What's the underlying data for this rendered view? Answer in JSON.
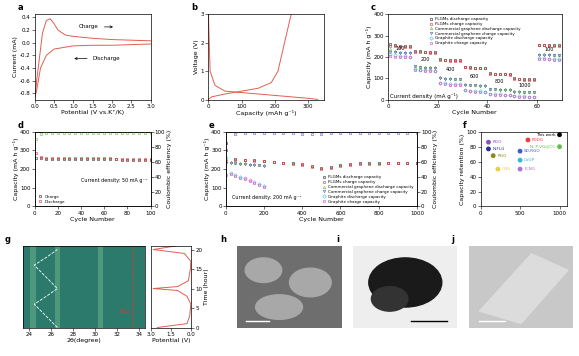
{
  "chart_data": [
    {
      "type": "line",
      "panel": "a",
      "xlabel": "Potential (V vs.K⁺/K)",
      "ylabel": "Current (mA)",
      "xlim": [
        0.0,
        3.0
      ],
      "xticks": [
        0.0,
        0.5,
        1.0,
        1.5,
        2.0,
        2.5,
        3.0
      ],
      "ylim": [
        -0.9,
        0.45
      ],
      "yticks": [
        -0.8,
        -0.6,
        -0.4,
        -0.2,
        0.0,
        0.2,
        0.4
      ],
      "annotations": [
        "Charge",
        "Discharge"
      ],
      "line_style": "solid",
      "series": [
        {
          "color": "#e35d4f",
          "x": [
            0.01,
            0.05,
            0.1,
            0.2,
            0.3,
            0.4,
            0.5,
            0.6,
            0.8,
            1.0,
            1.5,
            2.0,
            2.5,
            3.0
          ],
          "values": [
            -0.85,
            -0.6,
            -0.35,
            0.15,
            0.35,
            0.38,
            0.3,
            0.2,
            0.12,
            0.1,
            0.07,
            0.05,
            0.04,
            0.03
          ]
        },
        {
          "color": "#e35d4f",
          "x": [
            3.0,
            2.5,
            2.0,
            1.5,
            1.0,
            0.5,
            0.3,
            0.15,
            0.05,
            0.01
          ],
          "values": [
            -0.02,
            -0.03,
            -0.04,
            -0.04,
            -0.05,
            -0.1,
            -0.2,
            -0.4,
            -0.75,
            -0.85
          ]
        }
      ]
    },
    {
      "type": "line",
      "panel": "b",
      "xlabel": "Capacity (mAh g⁻¹)",
      "ylabel": "Voltage (V)",
      "xlim": [
        0,
        350
      ],
      "xticks": [
        0,
        100,
        200,
        300
      ],
      "ylim": [
        0,
        3
      ],
      "yticks": [
        0,
        1,
        2,
        3
      ],
      "line_style": "solid",
      "series": [
        {
          "color": "#e35d4f",
          "x": [
            0,
            5,
            20,
            50,
            100,
            150,
            200,
            250,
            300,
            330
          ],
          "values": [
            3.0,
            1.0,
            0.5,
            0.3,
            0.25,
            0.2,
            0.15,
            0.1,
            0.05,
            0.01
          ]
        },
        {
          "color": "#e35d4f",
          "x": [
            0,
            10,
            50,
            100,
            150,
            190,
            210,
            230,
            250
          ],
          "values": [
            0.01,
            0.1,
            0.2,
            0.3,
            0.4,
            0.6,
            1.0,
            2.0,
            3.0
          ]
        }
      ]
    },
    {
      "type": "line",
      "panel": "c",
      "xlabel": "Cycle Number",
      "ylabel": "Capacity (mA h g⁻¹)",
      "xlim": [
        0,
        70
      ],
      "xticks": [
        0,
        20,
        40,
        60
      ],
      "ylim": [
        0,
        400
      ],
      "yticks": [
        0,
        100,
        200,
        300,
        400
      ],
      "legend": "upper center",
      "line_style": "none",
      "note": "Current density (mA g⁻¹)",
      "stage_labels": [
        "100",
        "200",
        "400",
        "600",
        "800",
        "1000",
        "100"
      ],
      "x": [
        1,
        3,
        5,
        7,
        9,
        11,
        13,
        15,
        17,
        19,
        21,
        23,
        25,
        27,
        29,
        31,
        33,
        35,
        37,
        39,
        41,
        43,
        45,
        47,
        49,
        51,
        53,
        55,
        57,
        59,
        61,
        63,
        65,
        67,
        69
      ],
      "series": [
        {
          "name": "FLGMs discharge capacity",
          "color": "#222222",
          "marker": "circle",
          "values": [
            262,
            255,
            252,
            250,
            249,
            230,
            226,
            224,
            222,
            221,
            190,
            187,
            186,
            185,
            184,
            155,
            152,
            150,
            149,
            148,
            125,
            122,
            121,
            120,
            119,
            100,
            97,
            96,
            95,
            95,
            258,
            257,
            256,
            255,
            255
          ]
        },
        {
          "name": "FLGMs charge capacity",
          "color": "#e3342f",
          "marker": "circle",
          "values": [
            250,
            249,
            248,
            247,
            246,
            224,
            222,
            221,
            220,
            219,
            186,
            184,
            183,
            182,
            181,
            151,
            149,
            148,
            147,
            146,
            122,
            120,
            119,
            118,
            117,
            97,
            95,
            94,
            93,
            93,
            254,
            254,
            253,
            252,
            252
          ]
        },
        {
          "name": "Commercial graphene discharge capacity",
          "color": "#6cbf3c",
          "marker": "triangle",
          "values": [
            235,
            228,
            225,
            223,
            222,
            160,
            155,
            153,
            152,
            151,
            105,
            102,
            100,
            99,
            98,
            72,
            70,
            69,
            68,
            67,
            52,
            50,
            49,
            48,
            48,
            40,
            39,
            38,
            37,
            37,
            215,
            213,
            212,
            211,
            210
          ]
        },
        {
          "name": "Commercial graphene charge capacity",
          "color": "#5560c0",
          "marker": "triangle_down",
          "values": [
            225,
            222,
            220,
            219,
            218,
            156,
            152,
            150,
            149,
            148,
            102,
            99,
            97,
            96,
            95,
            70,
            68,
            67,
            66,
            65,
            50,
            48,
            47,
            46,
            46,
            38,
            37,
            36,
            35,
            35,
            211,
            210,
            209,
            208,
            207
          ]
        },
        {
          "name": "Graphite discharge capacity",
          "color": "#3cc0e0",
          "marker": "diamond",
          "values": [
            215,
            208,
            205,
            203,
            202,
            145,
            140,
            138,
            137,
            136,
            80,
            76,
            74,
            73,
            72,
            45,
            42,
            40,
            39,
            38,
            28,
            26,
            25,
            24,
            24,
            18,
            16,
            15,
            14,
            14,
            195,
            193,
            192,
            191,
            190
          ]
        },
        {
          "name": "Graphite charge capacity",
          "color": "#e040c0",
          "marker": "square",
          "values": [
            205,
            202,
            200,
            199,
            198,
            141,
            137,
            135,
            134,
            133,
            77,
            73,
            71,
            70,
            69,
            43,
            40,
            38,
            37,
            36,
            26,
            24,
            23,
            22,
            22,
            16,
            14,
            13,
            12,
            12,
            191,
            190,
            189,
            188,
            187
          ]
        }
      ]
    },
    {
      "type": "line",
      "panel": "d",
      "xlabel": "Cycle Number",
      "ylabel": "Capacity (mA h g⁻¹)",
      "y2label": "Coulombic efficiency (%)",
      "xlim": [
        0,
        100
      ],
      "xticks": [
        0,
        20,
        40,
        60,
        80,
        100
      ],
      "ylim": [
        0,
        400
      ],
      "yticks": [
        0,
        100,
        200,
        300,
        400
      ],
      "y2lim": [
        0,
        100
      ],
      "y2ticks": [
        0,
        20,
        40,
        60,
        80,
        100
      ],
      "legend": "lower left",
      "line_style": "none",
      "note": "Current density: 50 mA g⁻¹",
      "x": [
        1,
        5,
        10,
        15,
        20,
        25,
        30,
        35,
        40,
        45,
        50,
        55,
        60,
        65,
        70,
        75,
        80,
        85,
        90,
        95,
        100
      ],
      "series": [
        {
          "name": "Charge",
          "color": "#222222",
          "marker": "square",
          "values": [
            258,
            257,
            256,
            256,
            255,
            255,
            254,
            254,
            254,
            253,
            253,
            253,
            252,
            252,
            252,
            251,
            251,
            251,
            250,
            250,
            250
          ]
        },
        {
          "name": "Discharge",
          "color": "#e3342f",
          "marker": "circle",
          "values": [
            285,
            265,
            262,
            261,
            260,
            260,
            259,
            259,
            258,
            258,
            258,
            257,
            257,
            257,
            256,
            256,
            256,
            255,
            255,
            255,
            255
          ]
        },
        {
          "color": "#66bb44",
          "marker": "circle",
          "axis": "y2",
          "values": [
            90,
            97,
            98,
            98,
            98,
            98,
            98,
            98,
            98,
            98,
            98,
            98,
            98,
            98,
            98,
            98,
            98,
            98,
            98,
            98,
            98
          ]
        }
      ]
    },
    {
      "type": "line",
      "panel": "e",
      "xlabel": "Cycle Number",
      "ylabel": "Capacity (mA h g⁻¹)",
      "y2label": "Coulombic efficiency (%)",
      "xlim": [
        0,
        1000
      ],
      "xticks": [
        0,
        200,
        400,
        600,
        800,
        1000
      ],
      "ylim": [
        0,
        400
      ],
      "yticks": [
        0,
        100,
        200,
        300,
        400
      ],
      "y2lim": [
        0,
        100
      ],
      "y2ticks": [
        0,
        20,
        40,
        60,
        80,
        100
      ],
      "legend": "lower right",
      "line_style": "none",
      "note": "Current density: 200 mA g⁻¹",
      "series": [
        {
          "name": "FLGMs discharge capacity",
          "color": "#222222",
          "marker": "circle",
          "x": [
            1,
            50,
            100,
            150,
            200,
            250,
            300,
            350,
            400,
            450,
            500,
            550,
            600,
            650,
            700,
            750,
            800,
            850,
            900,
            950,
            1000
          ],
          "values": [
            340,
            255,
            250,
            248,
            245,
            240,
            235,
            230,
            225,
            215,
            205,
            210,
            220,
            225,
            230,
            232,
            232,
            233,
            233,
            234,
            235
          ]
        },
        {
          "name": "FLGMs charge capacity",
          "color": "#e3342f",
          "marker": "square",
          "x": [
            1,
            50,
            100,
            150,
            200,
            250,
            300,
            350,
            400,
            450,
            500,
            550,
            600,
            650,
            700,
            750,
            800,
            850,
            900,
            950,
            1000
          ],
          "values": [
            245,
            250,
            247,
            245,
            242,
            237,
            232,
            227,
            222,
            212,
            202,
            207,
            217,
            222,
            227,
            229,
            229,
            230,
            230,
            231,
            232
          ]
        },
        {
          "name": "Commercial graphene discharge capacity",
          "color": "#6cbf3c",
          "marker": "triangle",
          "x": [
            1,
            25,
            50,
            75,
            100,
            125,
            150,
            175,
            200
          ],
          "values": [
            300,
            240,
            235,
            232,
            230,
            228,
            226,
            224,
            222
          ]
        },
        {
          "name": "Commercial graphene charge capacity",
          "color": "#5560c0",
          "marker": "triangle_down",
          "x": [
            1,
            25,
            50,
            75,
            100,
            125,
            150,
            175,
            200
          ],
          "values": [
            230,
            232,
            230,
            228,
            226,
            224,
            222,
            220,
            218
          ]
        },
        {
          "name": "Graphite discharge capacity",
          "color": "#3cc0e0",
          "marker": "diamond",
          "x": [
            1,
            25,
            50,
            75,
            100,
            125,
            150,
            175,
            200
          ],
          "values": [
            260,
            180,
            170,
            160,
            150,
            140,
            130,
            120,
            110
          ]
        },
        {
          "name": "Graphite charge capacity",
          "color": "#e040c0",
          "marker": "square",
          "x": [
            1,
            25,
            50,
            75,
            100,
            125,
            150,
            175,
            200
          ],
          "values": [
            170,
            172,
            165,
            155,
            145,
            135,
            125,
            115,
            105
          ]
        },
        {
          "color": "#5b5bd6",
          "marker": "circle",
          "axis": "y2",
          "x": [
            1,
            50,
            100,
            150,
            200,
            250,
            300,
            350,
            400,
            450,
            500,
            550,
            600,
            650,
            700,
            750,
            800,
            850,
            900,
            950,
            1000
          ],
          "values": [
            75,
            97,
            98,
            98,
            98,
            98,
            98,
            98,
            97,
            97,
            97,
            98,
            98,
            98,
            98,
            98,
            98,
            98,
            98,
            98,
            98
          ]
        }
      ]
    },
    {
      "type": "scatter",
      "panel": "f",
      "ylabel": "Capacity retention (%)",
      "xlim": [
        0,
        1100
      ],
      "xticks": [
        0,
        500,
        1000
      ],
      "ylim": [
        0,
        100
      ],
      "yticks": [
        0,
        20,
        40,
        60,
        80,
        100
      ],
      "marker": "circle",
      "x": [
        100,
        100,
        160,
        600,
        500,
        500,
        1000,
        500,
        220,
        1000
      ],
      "values": [
        86,
        77,
        68,
        89,
        74,
        62,
        80,
        50,
        50,
        96
      ],
      "point_labels": [
        "RGO",
        "N-FLG",
        "RGO",
        "PDDG",
        "SD-RGO",
        "CoGP",
        "N, P-VG@CC",
        "FLNG",
        "GNS",
        "This work"
      ],
      "colors": [
        "#8a4fbf",
        "#2b2f8f",
        "#8a8a1a",
        "#e0413a",
        "#3a5bd0",
        "#35b8d8",
        "#5fbf4a",
        "#b070d0",
        "#e8d040",
        "#000000"
      ]
    },
    {
      "type": "contour",
      "panel": "g",
      "xlabel": "2θ(degree)",
      "xlim": [
        23.5,
        34.5
      ],
      "xticks": [
        24,
        26,
        28,
        30,
        32,
        34
      ],
      "ylim": [
        0,
        21
      ],
      "tick_labels": "x",
      "peak_path": {
        "x": [
          26.6,
          25.2,
          24.5,
          25.6,
          26.6,
          25.2,
          24.5,
          25.6,
          26.6
        ],
        "values": [
          0,
          4,
          6,
          8,
          10,
          14,
          16,
          18,
          20
        ]
      },
      "reference_line": {
        "x": 33.4,
        "label": "KC₈",
        "color": "#e3342f"
      }
    },
    {
      "type": "line",
      "xlabel": "Potential (V)",
      "ylabel": "Time (hour)",
      "xlim": [
        3.0,
        0.0
      ],
      "xticks": [
        3.0,
        1.5,
        0.0
      ],
      "ylim": [
        0,
        21
      ],
      "yticks": [
        0,
        5,
        10,
        15,
        20
      ],
      "line_style": "solid",
      "series": [
        {
          "color": "#e35d4f",
          "x": [
            2.5,
            0.3,
            0.1,
            0.02,
            0.3,
            1.0,
            2.8,
            1.0,
            0.2,
            0.05,
            0.02,
            0.5,
            2.8,
            1.0
          ],
          "values": [
            0,
            1,
            3,
            6,
            8,
            9.5,
            10,
            10.5,
            12,
            15,
            17,
            19,
            20,
            21
          ]
        }
      ]
    },
    {
      "type": "image",
      "panel": "h"
    },
    {
      "type": "image",
      "panel": "i"
    },
    {
      "type": "image",
      "panel": "j"
    }
  ]
}
